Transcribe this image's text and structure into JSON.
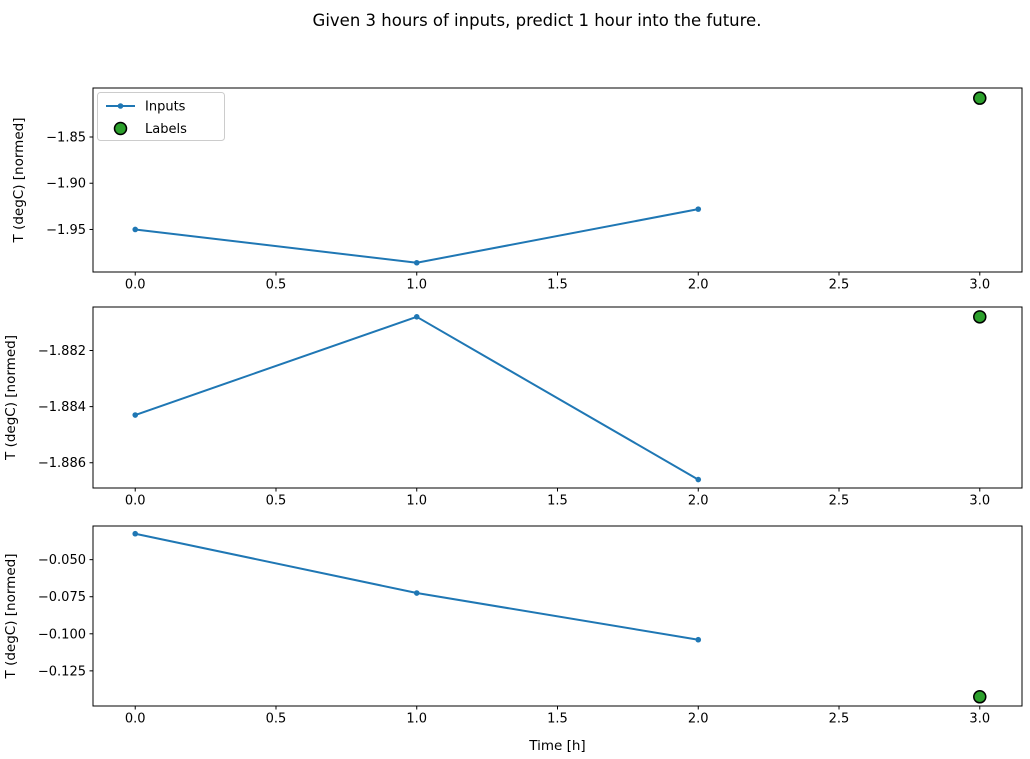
{
  "figure": {
    "title": "Given 3 hours of inputs, predict 1 hour into the future.",
    "background": "#ffffff"
  },
  "colors": {
    "inputs_line": "#1f77b4",
    "labels_marker": "#2ca02c",
    "marker_edge": "#000000",
    "spine": "#000000",
    "legend_border": "#cccccc"
  },
  "chart_data": [
    {
      "type": "line",
      "title": "",
      "xlabel": "",
      "ylabel": "T (degC) [normed]",
      "grid": false,
      "xlim": [
        -0.15,
        3.15
      ],
      "ylim": [
        -1.996,
        -1.797
      ],
      "xticks": {
        "values": [
          0,
          0.5,
          1,
          1.5,
          2,
          2.5,
          3
        ],
        "labels": [
          "0.0",
          "0.5",
          "1.0",
          "1.5",
          "2.0",
          "2.5",
          "3.0"
        ]
      },
      "yticks": {
        "values": [
          -1.85,
          -1.9,
          -1.95
        ],
        "labels": [
          "−1.85",
          "−1.90",
          "−1.95"
        ]
      },
      "series": [
        {
          "name": "Inputs",
          "type": "line+marker",
          "color": "#1f77b4",
          "x": [
            0,
            1,
            2
          ],
          "y": [
            -1.95,
            -1.986,
            -1.928
          ]
        },
        {
          "name": "Labels",
          "type": "scatter",
          "color": "#2ca02c",
          "edge_color": "#000000",
          "x": [
            3
          ],
          "y": [
            -1.808
          ]
        }
      ],
      "legend": {
        "visible": true,
        "position": "upper left",
        "entries": [
          "Inputs",
          "Labels"
        ]
      }
    },
    {
      "type": "line",
      "title": "",
      "xlabel": "",
      "ylabel": "T (degC) [normed]",
      "grid": false,
      "xlim": [
        -0.15,
        3.15
      ],
      "ylim": [
        -1.8869,
        -1.88045
      ],
      "xticks": {
        "values": [
          0,
          0.5,
          1,
          1.5,
          2,
          2.5,
          3
        ],
        "labels": [
          "0.0",
          "0.5",
          "1.0",
          "1.5",
          "2.0",
          "2.5",
          "3.0"
        ]
      },
      "yticks": {
        "values": [
          -1.882,
          -1.884,
          -1.886
        ],
        "labels": [
          "−1.882",
          "−1.884",
          "−1.886"
        ]
      },
      "series": [
        {
          "name": "Inputs",
          "type": "line+marker",
          "color": "#1f77b4",
          "x": [
            0,
            1,
            2
          ],
          "y": [
            -1.8843,
            -1.8808,
            -1.8866
          ]
        },
        {
          "name": "Labels",
          "type": "scatter",
          "color": "#2ca02c",
          "edge_color": "#000000",
          "x": [
            3
          ],
          "y": [
            -1.8808
          ]
        }
      ],
      "legend": {
        "visible": false,
        "position": "",
        "entries": []
      }
    },
    {
      "type": "line",
      "title": "",
      "xlabel": "Time [h]",
      "ylabel": "T (degC) [normed]",
      "grid": false,
      "xlim": [
        -0.15,
        3.15
      ],
      "ylim": [
        -0.1487,
        -0.0273
      ],
      "xticks": {
        "values": [
          0,
          0.5,
          1,
          1.5,
          2,
          2.5,
          3
        ],
        "labels": [
          "0.0",
          "0.5",
          "1.0",
          "1.5",
          "2.0",
          "2.5",
          "3.0"
        ]
      },
      "yticks": {
        "values": [
          -0.05,
          -0.075,
          -0.1,
          -0.125
        ],
        "labels": [
          "−0.050",
          "−0.075",
          "−0.100",
          "−0.125"
        ]
      },
      "series": [
        {
          "name": "Inputs",
          "type": "line+marker",
          "color": "#1f77b4",
          "x": [
            0,
            1,
            2
          ],
          "y": [
            -0.0325,
            -0.0725,
            -0.104
          ]
        },
        {
          "name": "Labels",
          "type": "scatter",
          "color": "#2ca02c",
          "edge_color": "#000000",
          "x": [
            3
          ],
          "y": [
            -0.1425
          ]
        }
      ],
      "legend": {
        "visible": false,
        "position": "",
        "entries": []
      }
    }
  ]
}
